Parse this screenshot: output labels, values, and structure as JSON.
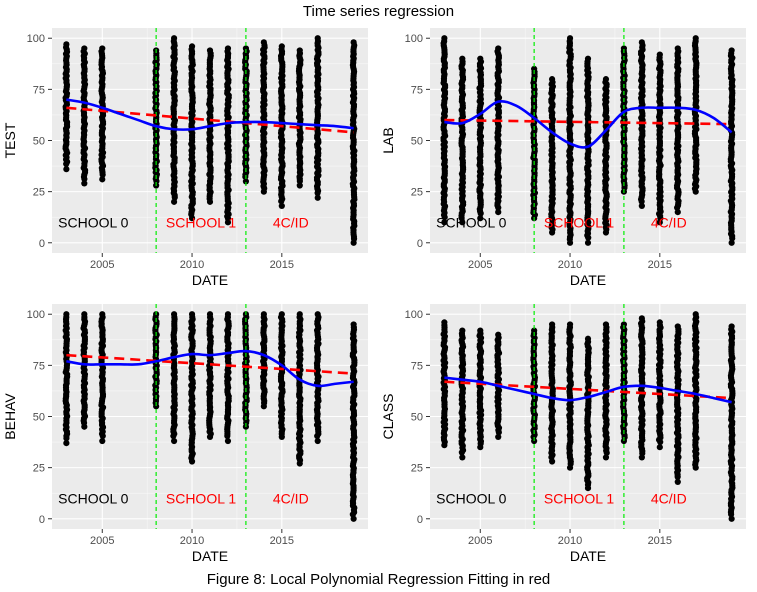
{
  "figure": {
    "title": "Time series regression",
    "caption": "Figure 8: Local Polynomial Regression Fitting in red"
  },
  "colors": {
    "panel": "#ebebeb",
    "grid_major": "#ffffff",
    "points": "#000000",
    "loess": "#0000ff",
    "linear_fit": "#ff0000",
    "period_line": "#00ee00",
    "label_school0": "#000000",
    "label_other": "#ff0000"
  },
  "chart_data": [
    {
      "type": "scatter",
      "xlabel": "DATE",
      "ylabel": "TEST",
      "xlim": [
        2002.2,
        2019.8
      ],
      "ylim": [
        -5,
        105
      ],
      "xticks": [
        2005,
        2010,
        2015
      ],
      "yticks": [
        0,
        25,
        50,
        75,
        100
      ],
      "vlines": [
        2008,
        2013
      ],
      "period_labels": [
        {
          "text": "SCHOOL 0",
          "x": 2004.5,
          "y": 10
        },
        {
          "text": "SCHOOL 1",
          "x": 2010.5,
          "y": 10
        },
        {
          "text": "4C/ID",
          "x": 2015.5,
          "y": 10
        }
      ],
      "points": [
        {
          "x": 2003,
          "ymin": 36,
          "ymax": 97
        },
        {
          "x": 2004,
          "ymin": 29,
          "ymax": 95
        },
        {
          "x": 2005,
          "ymin": 31,
          "ymax": 95
        },
        {
          "x": 2008,
          "ymin": 28,
          "ymax": 94
        },
        {
          "x": 2009,
          "ymin": 20,
          "ymax": 100
        },
        {
          "x": 2010,
          "ymin": 12,
          "ymax": 96
        },
        {
          "x": 2011,
          "ymin": 20,
          "ymax": 94
        },
        {
          "x": 2012,
          "ymin": 10,
          "ymax": 95
        },
        {
          "x": 2013,
          "ymin": 30,
          "ymax": 95
        },
        {
          "x": 2014,
          "ymin": 25,
          "ymax": 98
        },
        {
          "x": 2015,
          "ymin": 18,
          "ymax": 96
        },
        {
          "x": 2016,
          "ymin": 28,
          "ymax": 94
        },
        {
          "x": 2017,
          "ymin": 22,
          "ymax": 100
        },
        {
          "x": 2019,
          "ymin": 0,
          "ymax": 98
        }
      ],
      "loess": {
        "x": [
          2003,
          2004,
          2005,
          2006,
          2007,
          2008,
          2009,
          2010,
          2011,
          2012,
          2013,
          2014,
          2015,
          2016,
          2017,
          2018,
          2019
        ],
        "y": [
          70,
          68.5,
          66,
          63,
          60,
          57,
          55.5,
          55.5,
          57,
          58.5,
          59,
          59,
          58.5,
          58,
          57.5,
          57,
          56
        ]
      },
      "linear_fit": {
        "x": [
          2003,
          2019
        ],
        "y": [
          66,
          54
        ]
      }
    },
    {
      "type": "scatter",
      "xlabel": "DATE",
      "ylabel": "LAB",
      "xlim": [
        2002.2,
        2019.8
      ],
      "ylim": [
        -5,
        105
      ],
      "xticks": [
        2005,
        2010,
        2015
      ],
      "yticks": [
        0,
        25,
        50,
        75,
        100
      ],
      "vlines": [
        2008,
        2013
      ],
      "period_labels": [
        {
          "text": "SCHOOL 0",
          "x": 2004.5,
          "y": 10
        },
        {
          "text": "SCHOOL 1",
          "x": 2010.5,
          "y": 10
        },
        {
          "text": "4C/ID",
          "x": 2015.5,
          "y": 10
        }
      ],
      "points": [
        {
          "x": 2003,
          "ymin": 10,
          "ymax": 100
        },
        {
          "x": 2004,
          "ymin": 10,
          "ymax": 90
        },
        {
          "x": 2005,
          "ymin": 12,
          "ymax": 90
        },
        {
          "x": 2006,
          "ymin": 15,
          "ymax": 95
        },
        {
          "x": 2008,
          "ymin": 12,
          "ymax": 85
        },
        {
          "x": 2009,
          "ymin": 5,
          "ymax": 80
        },
        {
          "x": 2010,
          "ymin": 0,
          "ymax": 100
        },
        {
          "x": 2011,
          "ymin": 0,
          "ymax": 90
        },
        {
          "x": 2012,
          "ymin": 5,
          "ymax": 80
        },
        {
          "x": 2013,
          "ymin": 25,
          "ymax": 95
        },
        {
          "x": 2014,
          "ymin": 18,
          "ymax": 98
        },
        {
          "x": 2015,
          "ymin": 10,
          "ymax": 92
        },
        {
          "x": 2016,
          "ymin": 15,
          "ymax": 95
        },
        {
          "x": 2017,
          "ymin": 25,
          "ymax": 100
        },
        {
          "x": 2019,
          "ymin": 0,
          "ymax": 94
        }
      ],
      "loess": {
        "x": [
          2003,
          2004,
          2005,
          2006,
          2007,
          2008,
          2009,
          2010,
          2011,
          2012,
          2013,
          2014,
          2015,
          2016,
          2017,
          2018,
          2019
        ],
        "y": [
          59,
          58.5,
          63,
          69,
          67,
          61,
          54,
          48.5,
          47,
          55,
          64,
          66,
          66,
          66,
          65,
          61,
          54
        ]
      },
      "linear_fit": {
        "x": [
          2003,
          2019
        ],
        "y": [
          60,
          58
        ]
      }
    },
    {
      "type": "scatter",
      "xlabel": "DATE",
      "ylabel": "BEHAV",
      "xlim": [
        2002.2,
        2019.8
      ],
      "ylim": [
        -5,
        105
      ],
      "xticks": [
        2005,
        2010,
        2015
      ],
      "yticks": [
        0,
        25,
        50,
        75,
        100
      ],
      "vlines": [
        2008,
        2013
      ],
      "period_labels": [
        {
          "text": "SCHOOL 0",
          "x": 2004.5,
          "y": 10
        },
        {
          "text": "SCHOOL 1",
          "x": 2010.5,
          "y": 10
        },
        {
          "text": "4C/ID",
          "x": 2015.5,
          "y": 10
        }
      ],
      "points": [
        {
          "x": 2003,
          "ymin": 37,
          "ymax": 100
        },
        {
          "x": 2004,
          "ymin": 45,
          "ymax": 100
        },
        {
          "x": 2005,
          "ymin": 38,
          "ymax": 100
        },
        {
          "x": 2008,
          "ymin": 55,
          "ymax": 100
        },
        {
          "x": 2009,
          "ymin": 38,
          "ymax": 100
        },
        {
          "x": 2010,
          "ymin": 28,
          "ymax": 100
        },
        {
          "x": 2011,
          "ymin": 40,
          "ymax": 100
        },
        {
          "x": 2012,
          "ymin": 38,
          "ymax": 100
        },
        {
          "x": 2013,
          "ymin": 45,
          "ymax": 100
        },
        {
          "x": 2014,
          "ymin": 55,
          "ymax": 100
        },
        {
          "x": 2015,
          "ymin": 40,
          "ymax": 100
        },
        {
          "x": 2016,
          "ymin": 27,
          "ymax": 100
        },
        {
          "x": 2017,
          "ymin": 38,
          "ymax": 100
        },
        {
          "x": 2019,
          "ymin": 0,
          "ymax": 95
        }
      ],
      "loess": {
        "x": [
          2003,
          2004,
          2005,
          2006,
          2007,
          2008,
          2009,
          2010,
          2011,
          2012,
          2013,
          2014,
          2015,
          2016,
          2017,
          2018,
          2019
        ],
        "y": [
          77,
          75.5,
          75.5,
          75.5,
          75.5,
          77,
          79,
          80.5,
          80,
          81,
          82,
          80,
          75,
          68,
          65,
          66,
          67
        ]
      },
      "linear_fit": {
        "x": [
          2003,
          2019
        ],
        "y": [
          80,
          71
        ]
      }
    },
    {
      "type": "scatter",
      "xlabel": "DATE",
      "ylabel": "CLASS",
      "xlim": [
        2002.2,
        2019.8
      ],
      "ylim": [
        -5,
        105
      ],
      "xticks": [
        2005,
        2010,
        2015
      ],
      "yticks": [
        0,
        25,
        50,
        75,
        100
      ],
      "vlines": [
        2008,
        2013
      ],
      "period_labels": [
        {
          "text": "SCHOOL 0",
          "x": 2004.5,
          "y": 10
        },
        {
          "text": "SCHOOL 1",
          "x": 2010.5,
          "y": 10
        },
        {
          "text": "4C/ID",
          "x": 2015.5,
          "y": 10
        }
      ],
      "points": [
        {
          "x": 2003,
          "ymin": 36,
          "ymax": 96
        },
        {
          "x": 2004,
          "ymin": 30,
          "ymax": 92
        },
        {
          "x": 2005,
          "ymin": 35,
          "ymax": 92
        },
        {
          "x": 2006,
          "ymin": 40,
          "ymax": 90
        },
        {
          "x": 2008,
          "ymin": 38,
          "ymax": 92
        },
        {
          "x": 2009,
          "ymin": 28,
          "ymax": 95
        },
        {
          "x": 2010,
          "ymin": 25,
          "ymax": 95
        },
        {
          "x": 2011,
          "ymin": 15,
          "ymax": 88
        },
        {
          "x": 2012,
          "ymin": 30,
          "ymax": 95
        },
        {
          "x": 2013,
          "ymin": 38,
          "ymax": 95
        },
        {
          "x": 2014,
          "ymin": 30,
          "ymax": 98
        },
        {
          "x": 2015,
          "ymin": 35,
          "ymax": 96
        },
        {
          "x": 2016,
          "ymin": 18,
          "ymax": 94
        },
        {
          "x": 2017,
          "ymin": 25,
          "ymax": 100
        },
        {
          "x": 2019,
          "ymin": 0,
          "ymax": 94
        }
      ],
      "loess": {
        "x": [
          2003,
          2004,
          2005,
          2006,
          2007,
          2008,
          2009,
          2010,
          2011,
          2012,
          2013,
          2014,
          2015,
          2016,
          2017,
          2018,
          2019
        ],
        "y": [
          69,
          68,
          67,
          65,
          63,
          61,
          59,
          58,
          59.5,
          62,
          64.5,
          65,
          64,
          62.5,
          61,
          59,
          57
        ]
      },
      "linear_fit": {
        "x": [
          2003,
          2019
        ],
        "y": [
          67,
          59
        ]
      }
    }
  ]
}
